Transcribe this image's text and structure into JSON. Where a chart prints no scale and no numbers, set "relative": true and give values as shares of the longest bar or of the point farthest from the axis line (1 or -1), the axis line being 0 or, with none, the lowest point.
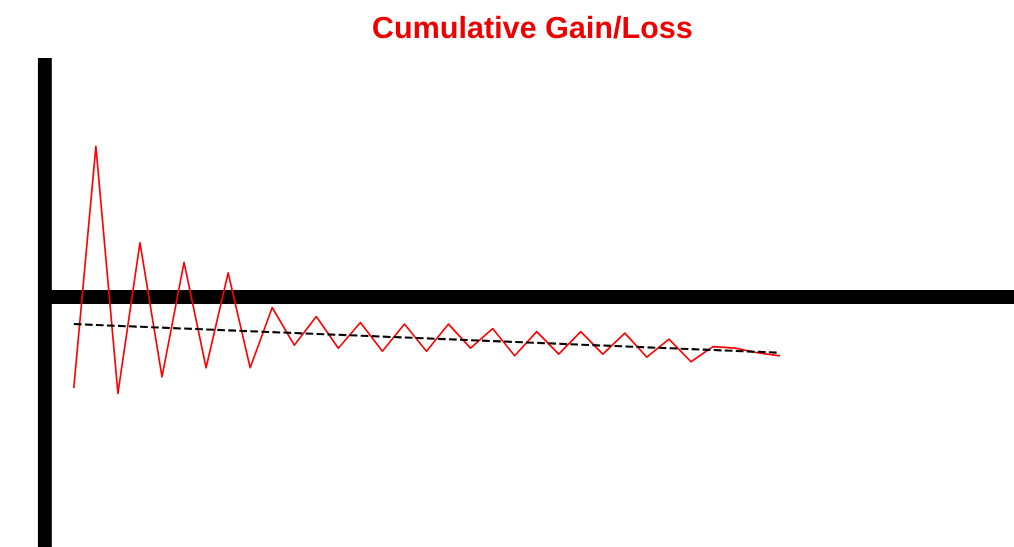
{
  "chart_data": {
    "type": "line",
    "title": "Cumulative Gain/Loss",
    "relative": true,
    "categories": [
      null,
      null,
      null,
      null,
      null,
      null,
      null,
      null,
      null,
      null,
      null,
      null,
      null,
      null,
      null,
      null,
      null,
      null,
      null,
      null,
      null,
      null,
      null,
      null,
      null,
      null,
      null,
      null,
      null,
      null,
      null,
      null,
      null
    ],
    "series": [
      {
        "color": "#ff0000",
        "line_style": "solid",
        "values": [
          -0.6,
          1,
          -0.64,
          0.36,
          -0.53,
          0.23,
          -0.47,
          0.16,
          -0.47,
          -0.07,
          -0.32,
          -0.13,
          -0.34,
          -0.17,
          -0.36,
          -0.18,
          -0.36,
          -0.18,
          -0.34,
          -0.21,
          -0.39,
          -0.23,
          -0.38,
          -0.23,
          -0.38,
          -0.24,
          -0.4,
          -0.28,
          -0.43,
          -0.33,
          -0.34,
          -0.37,
          -0.39
        ]
      },
      {
        "color": "#000000",
        "line_style": "dashed",
        "values": [
          -0.18,
          null,
          null,
          null,
          null,
          null,
          null,
          null,
          null,
          null,
          null,
          null,
          null,
          null,
          null,
          null,
          null,
          null,
          null,
          null,
          null,
          null,
          null,
          null,
          null,
          null,
          null,
          null,
          null,
          null,
          null,
          null,
          -0.37
        ]
      }
    ]
  }
}
